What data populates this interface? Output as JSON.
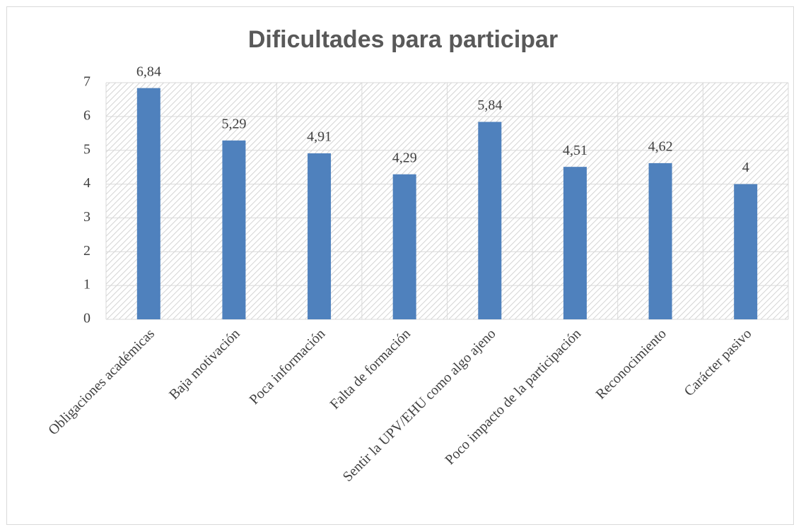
{
  "chart_data": {
    "type": "bar",
    "title": "Dificultades para participar",
    "categories": [
      "Obligaciones académicas",
      "Baja motivación",
      "Poca información",
      "Falta de formación",
      "Sentir la UPV/EHU como algo ajeno",
      "Poco impacto de la participación",
      "Reconocimiento",
      "Carácter pasivo"
    ],
    "values": [
      6.84,
      5.29,
      4.91,
      4.29,
      5.84,
      4.51,
      4.62,
      4
    ],
    "value_labels": [
      "6,84",
      "5,29",
      "4,91",
      "4,29",
      "5,84",
      "4,51",
      "4,62",
      "4"
    ],
    "color": "#4f81bd",
    "ylim": [
      0,
      7
    ],
    "yticks": [
      0,
      1,
      2,
      3,
      4,
      5,
      6,
      7
    ],
    "grid": true
  }
}
